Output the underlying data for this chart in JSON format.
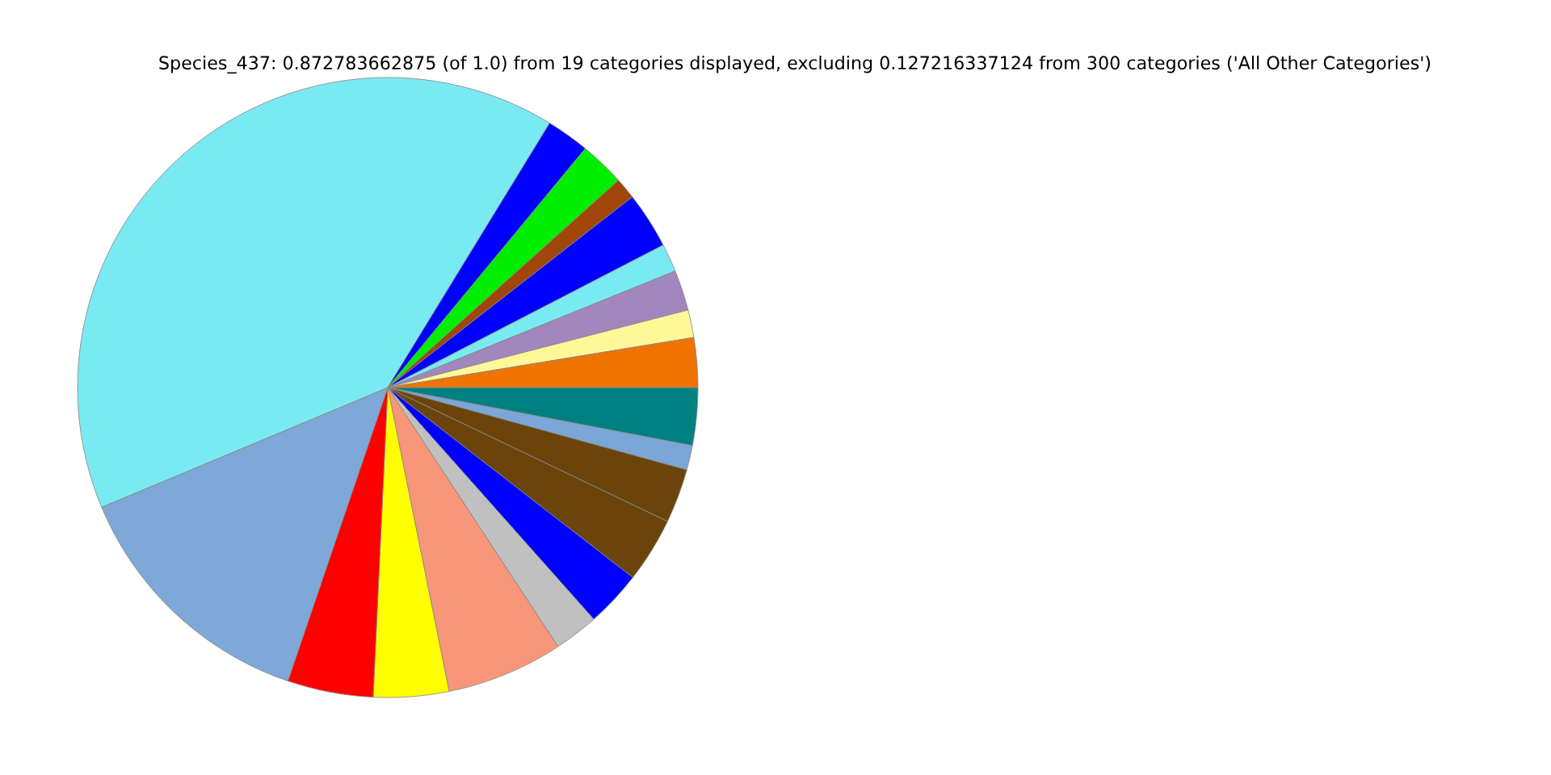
{
  "chart_data": {
    "type": "pie",
    "title": "Species_437: 0.872783662875 (of 1.0) from 19 categories displayed, excluding 0.127216337124 from 300 categories ('All Other Categories')",
    "categories": [
      null,
      null,
      null,
      null,
      null,
      null,
      null,
      null,
      null,
      null,
      null,
      null,
      null,
      null,
      null,
      null,
      null,
      null,
      null
    ],
    "values": [
      3.0,
      1.28,
      2.83,
      3.39,
      2.94,
      2.31,
      6.08,
      3.92,
      4.47,
      13.47,
      40.05,
      2.25,
      2.36,
      1.11,
      2.94,
      1.47,
      2.11,
      1.44,
      2.58
    ],
    "colors": [
      "#008080",
      "#7ba7d8",
      "#6b440c",
      "#6b440c",
      "#0000ff",
      "#c0c0c0",
      "#f8967a",
      "#ffff00",
      "#ff0000",
      "#7ea8d8",
      "#7aeaf2",
      "#0000ff",
      "#00ee00",
      "#a0460a",
      "#0000ff",
      "#7aeaf2",
      "#a287bd",
      "#fff899",
      "#f07300"
    ],
    "legend": false
  }
}
